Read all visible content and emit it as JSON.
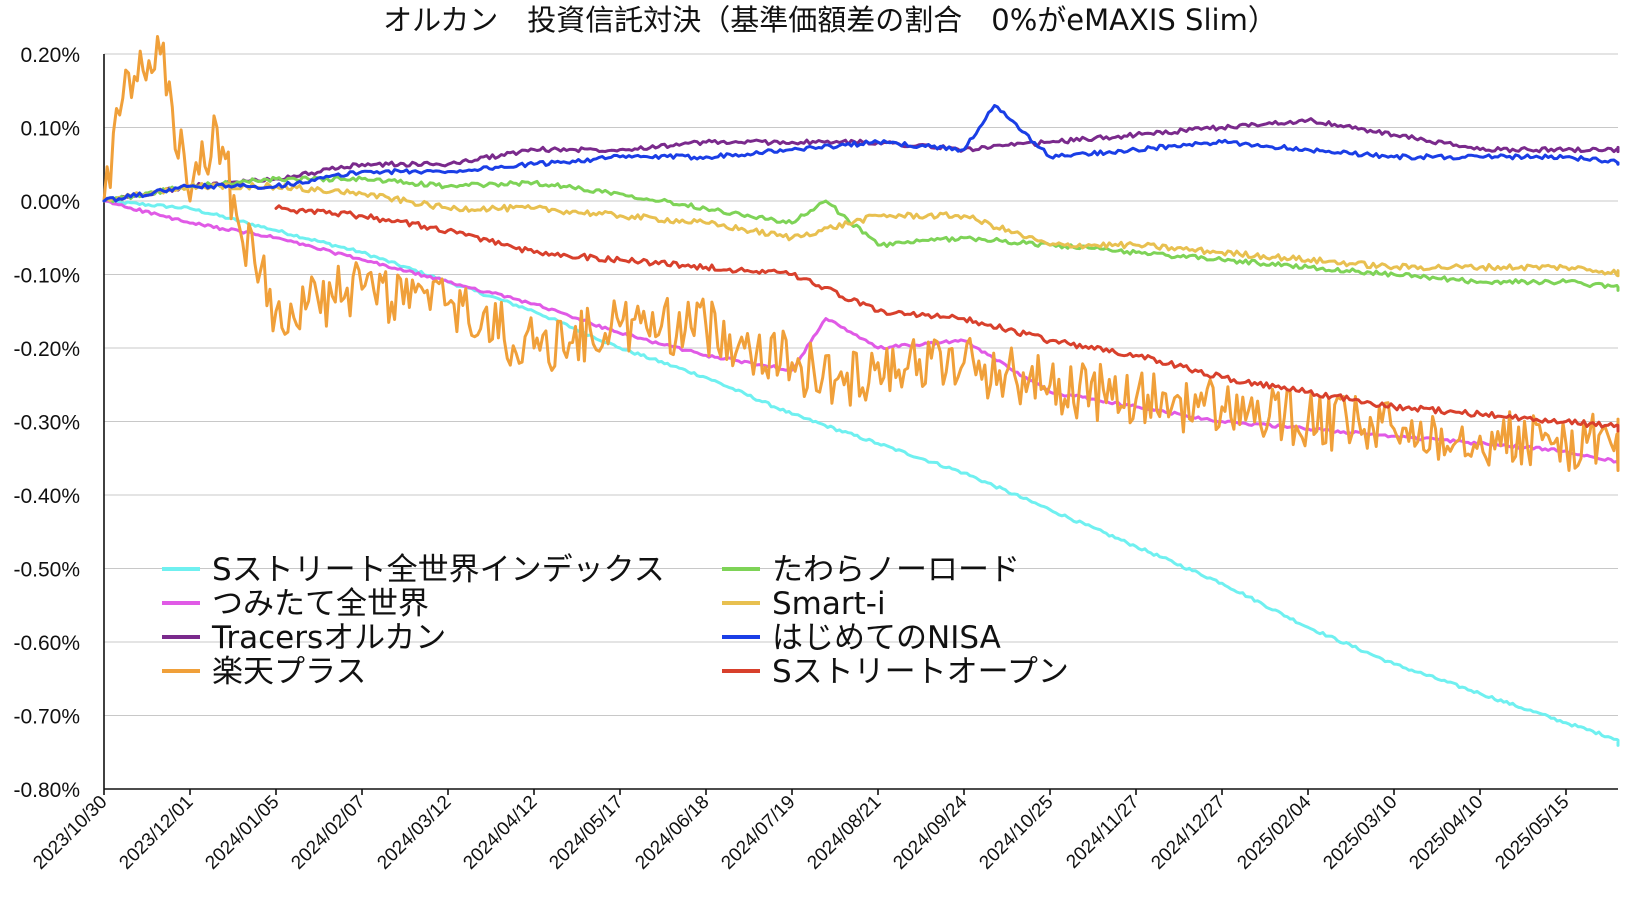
{
  "chart_data": {
    "type": "line",
    "title": "オルカン　投資信託対決（基準価額差の割合　0%がeMAXIS Slim）",
    "xlabel": "",
    "ylabel": "",
    "ylim": [
      -0.8,
      0.2
    ],
    "y_tick_labels": [
      "0.20%",
      "0.10%",
      "0.00%",
      "-0.10%",
      "-0.20%",
      "-0.30%",
      "-0.40%",
      "-0.50%",
      "-0.60%",
      "-0.70%",
      "-0.80%"
    ],
    "y_tick_values": [
      0.2,
      0.1,
      0.0,
      -0.1,
      -0.2,
      -0.3,
      -0.4,
      -0.5,
      -0.6,
      -0.7,
      -0.8
    ],
    "x_tick_labels": [
      "2023/10/30",
      "2023/12/01",
      "2024/01/05",
      "2024/02/07",
      "2024/03/12",
      "2024/04/12",
      "2024/05/17",
      "2024/06/18",
      "2024/07/19",
      "2024/08/21",
      "2024/09/24",
      "2024/10/25",
      "2024/11/27",
      "2024/12/27",
      "2025/02/04",
      "2025/03/10",
      "2025/04/10",
      "2025/05/15"
    ],
    "grid": true,
    "legend_position": "lower-left",
    "series": [
      {
        "name": "Sストリート全世界インデックス",
        "color": "#6ff0f0",
        "points": [
          [
            "2023/10/30",
            0.0
          ],
          [
            "2023/12/01",
            -0.01
          ],
          [
            "2024/01/05",
            -0.04
          ],
          [
            "2024/02/07",
            -0.07
          ],
          [
            "2024/03/12",
            -0.11
          ],
          [
            "2024/04/12",
            -0.15
          ],
          [
            "2024/05/17",
            -0.2
          ],
          [
            "2024/06/18",
            -0.24
          ],
          [
            "2024/07/19",
            -0.29
          ],
          [
            "2024/08/21",
            -0.33
          ],
          [
            "2024/09/24",
            -0.37
          ],
          [
            "2024/10/25",
            -0.42
          ],
          [
            "2024/11/27",
            -0.47
          ],
          [
            "2024/12/27",
            -0.52
          ],
          [
            "2025/02/04",
            -0.58
          ],
          [
            "2025/03/10",
            -0.63
          ],
          [
            "2025/04/10",
            -0.67
          ],
          [
            "2025/05/15",
            -0.71
          ],
          [
            "2025/06/12",
            -0.74
          ]
        ]
      },
      {
        "name": "つみたて全世界",
        "color": "#e05ae6",
        "points": [
          [
            "2023/10/30",
            0.0
          ],
          [
            "2023/12/01",
            -0.03
          ],
          [
            "2024/01/05",
            -0.05
          ],
          [
            "2024/02/07",
            -0.08
          ],
          [
            "2024/03/12",
            -0.11
          ],
          [
            "2024/04/12",
            -0.14
          ],
          [
            "2024/05/17",
            -0.18
          ],
          [
            "2024/06/18",
            -0.21
          ],
          [
            "2024/07/19",
            -0.23
          ],
          [
            "2024/08/01",
            -0.16
          ],
          [
            "2024/08/21",
            -0.2
          ],
          [
            "2024/09/24",
            -0.19
          ],
          [
            "2024/10/25",
            -0.26
          ],
          [
            "2024/11/27",
            -0.28
          ],
          [
            "2024/12/27",
            -0.3
          ],
          [
            "2025/02/04",
            -0.31
          ],
          [
            "2025/03/10",
            -0.32
          ],
          [
            "2025/04/10",
            -0.33
          ],
          [
            "2025/05/15",
            -0.34
          ],
          [
            "2025/06/12",
            -0.36
          ]
        ]
      },
      {
        "name": "Tracersオルカン",
        "color": "#7a2a8c",
        "points": [
          [
            "2023/10/30",
            0.0
          ],
          [
            "2023/12/01",
            0.02
          ],
          [
            "2024/01/05",
            0.03
          ],
          [
            "2024/02/07",
            0.05
          ],
          [
            "2024/03/12",
            0.05
          ],
          [
            "2024/04/12",
            0.07
          ],
          [
            "2024/05/17",
            0.07
          ],
          [
            "2024/06/18",
            0.08
          ],
          [
            "2024/07/19",
            0.08
          ],
          [
            "2024/08/21",
            0.08
          ],
          [
            "2024/09/24",
            0.07
          ],
          [
            "2024/10/25",
            0.08
          ],
          [
            "2024/11/27",
            0.09
          ],
          [
            "2024/12/27",
            0.1
          ],
          [
            "2025/02/04",
            0.11
          ],
          [
            "2025/03/10",
            0.09
          ],
          [
            "2025/04/10",
            0.07
          ],
          [
            "2025/05/15",
            0.07
          ],
          [
            "2025/06/12",
            0.07
          ]
        ]
      },
      {
        "name": "楽天プラス",
        "color": "#f0a03a",
        "points": [
          [
            "2023/10/30",
            0.0
          ],
          [
            "2023/11/06",
            0.14
          ],
          [
            "2023/11/20",
            0.2
          ],
          [
            "2023/12/01",
            0.0
          ],
          [
            "2023/12/12",
            0.1
          ],
          [
            "2023/12/20",
            -0.02
          ],
          [
            "2024/01/05",
            -0.15
          ],
          [
            "2024/02/07",
            -0.12
          ],
          [
            "2024/03/12",
            -0.14
          ],
          [
            "2024/04/12",
            -0.2
          ],
          [
            "2024/05/17",
            -0.17
          ],
          [
            "2024/06/18",
            -0.17
          ],
          [
            "2024/07/19",
            -0.22
          ],
          [
            "2024/08/08",
            -0.25
          ],
          [
            "2024/08/21",
            -0.22
          ],
          [
            "2024/09/24",
            -0.22
          ],
          [
            "2024/10/25",
            -0.25
          ],
          [
            "2024/11/27",
            -0.27
          ],
          [
            "2024/12/27",
            -0.28
          ],
          [
            "2025/02/04",
            -0.3
          ],
          [
            "2025/03/10",
            -0.31
          ],
          [
            "2025/04/10",
            -0.32
          ],
          [
            "2025/05/15",
            -0.33
          ],
          [
            "2025/06/12",
            -0.33
          ]
        ]
      },
      {
        "name": "たわらノーロード",
        "color": "#7ed357",
        "points": [
          [
            "2023/10/30",
            0.0
          ],
          [
            "2023/12/01",
            0.02
          ],
          [
            "2024/01/05",
            0.03
          ],
          [
            "2024/02/07",
            0.03
          ],
          [
            "2024/03/12",
            0.02
          ],
          [
            "2024/04/12",
            0.025
          ],
          [
            "2024/05/17",
            0.01
          ],
          [
            "2024/06/18",
            -0.01
          ],
          [
            "2024/07/19",
            -0.03
          ],
          [
            "2024/08/01",
            0.0
          ],
          [
            "2024/08/21",
            -0.06
          ],
          [
            "2024/09/24",
            -0.05
          ],
          [
            "2024/10/25",
            -0.06
          ],
          [
            "2024/11/27",
            -0.07
          ],
          [
            "2024/12/27",
            -0.08
          ],
          [
            "2025/02/04",
            -0.09
          ],
          [
            "2025/03/10",
            -0.1
          ],
          [
            "2025/04/10",
            -0.11
          ],
          [
            "2025/05/15",
            -0.11
          ],
          [
            "2025/06/12",
            -0.12
          ]
        ]
      },
      {
        "name": "Smart-i",
        "color": "#e8c050",
        "points": [
          [
            "2023/10/30",
            0.0
          ],
          [
            "2023/12/01",
            0.02
          ],
          [
            "2024/01/05",
            0.02
          ],
          [
            "2024/02/07",
            0.01
          ],
          [
            "2024/03/12",
            -0.01
          ],
          [
            "2024/04/12",
            -0.01
          ],
          [
            "2024/05/17",
            -0.02
          ],
          [
            "2024/06/18",
            -0.03
          ],
          [
            "2024/07/19",
            -0.05
          ],
          [
            "2024/08/21",
            -0.02
          ],
          [
            "2024/09/24",
            -0.02
          ],
          [
            "2024/10/25",
            -0.06
          ],
          [
            "2024/11/27",
            -0.06
          ],
          [
            "2024/12/27",
            -0.07
          ],
          [
            "2025/02/04",
            -0.08
          ],
          [
            "2025/03/10",
            -0.09
          ],
          [
            "2025/04/10",
            -0.09
          ],
          [
            "2025/05/15",
            -0.09
          ],
          [
            "2025/06/12",
            -0.1
          ]
        ]
      },
      {
        "name": "はじめてのNISA",
        "color": "#1a3ee6",
        "points": [
          [
            "2023/10/30",
            0.0
          ],
          [
            "2023/12/01",
            0.02
          ],
          [
            "2024/01/05",
            0.02
          ],
          [
            "2024/02/07",
            0.04
          ],
          [
            "2024/03/12",
            0.04
          ],
          [
            "2024/04/12",
            0.05
          ],
          [
            "2024/05/17",
            0.06
          ],
          [
            "2024/06/18",
            0.06
          ],
          [
            "2024/07/19",
            0.07
          ],
          [
            "2024/08/21",
            0.08
          ],
          [
            "2024/09/24",
            0.07
          ],
          [
            "2024/10/05",
            0.13
          ],
          [
            "2024/10/25",
            0.06
          ],
          [
            "2024/11/27",
            0.07
          ],
          [
            "2024/12/27",
            0.08
          ],
          [
            "2025/02/04",
            0.07
          ],
          [
            "2025/03/10",
            0.06
          ],
          [
            "2025/04/10",
            0.06
          ],
          [
            "2025/05/15",
            0.06
          ],
          [
            "2025/06/12",
            0.05
          ]
        ]
      },
      {
        "name": "Sストリートオープン",
        "color": "#d8402c",
        "points": [
          [
            "2024/01/05",
            -0.01
          ],
          [
            "2024/02/07",
            -0.02
          ],
          [
            "2024/03/12",
            -0.04
          ],
          [
            "2024/04/12",
            -0.07
          ],
          [
            "2024/05/17",
            -0.08
          ],
          [
            "2024/06/18",
            -0.09
          ],
          [
            "2024/07/19",
            -0.1
          ],
          [
            "2024/08/21",
            -0.15
          ],
          [
            "2024/09/24",
            -0.16
          ],
          [
            "2024/10/25",
            -0.19
          ],
          [
            "2024/11/27",
            -0.21
          ],
          [
            "2024/12/27",
            -0.24
          ],
          [
            "2025/02/04",
            -0.26
          ],
          [
            "2025/03/10",
            -0.28
          ],
          [
            "2025/04/10",
            -0.29
          ],
          [
            "2025/05/15",
            -0.3
          ],
          [
            "2025/06/12",
            -0.31
          ]
        ]
      }
    ]
  }
}
